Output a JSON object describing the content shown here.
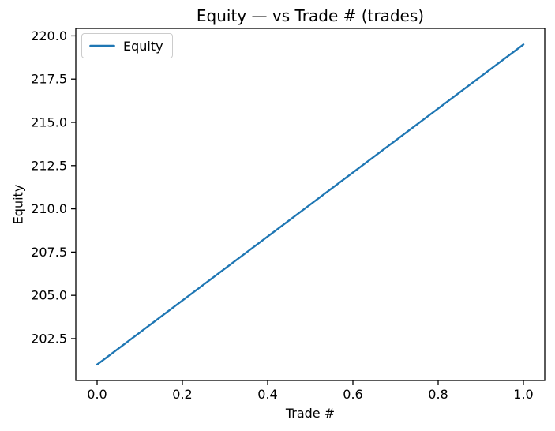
{
  "chart_data": {
    "type": "line",
    "title": "Equity — vs Trade # (trades)",
    "xlabel": "Trade #",
    "ylabel": "Equity",
    "series": [
      {
        "name": "Equity",
        "color": "#1f77b4",
        "x": [
          0,
          1
        ],
        "y": [
          201.0,
          219.5
        ]
      }
    ],
    "xlim": [
      -0.05,
      1.05
    ],
    "ylim": [
      200.08,
      220.43
    ],
    "xticks": [
      0.0,
      0.2,
      0.4,
      0.6,
      0.8,
      1.0
    ],
    "xtick_labels": [
      "0.0",
      "0.2",
      "0.4",
      "0.6",
      "0.8",
      "1.0"
    ],
    "yticks": [
      202.5,
      205.0,
      207.5,
      210.0,
      212.5,
      215.0,
      217.5,
      220.0
    ],
    "ytick_labels": [
      "202.5",
      "205.0",
      "207.5",
      "210.0",
      "212.5",
      "215.0",
      "217.5",
      "220.0"
    ],
    "grid": false,
    "legend": {
      "position": "upper left",
      "entries": [
        "Equity"
      ]
    },
    "background_color": "#ffffff",
    "spine_color": "#000000"
  }
}
